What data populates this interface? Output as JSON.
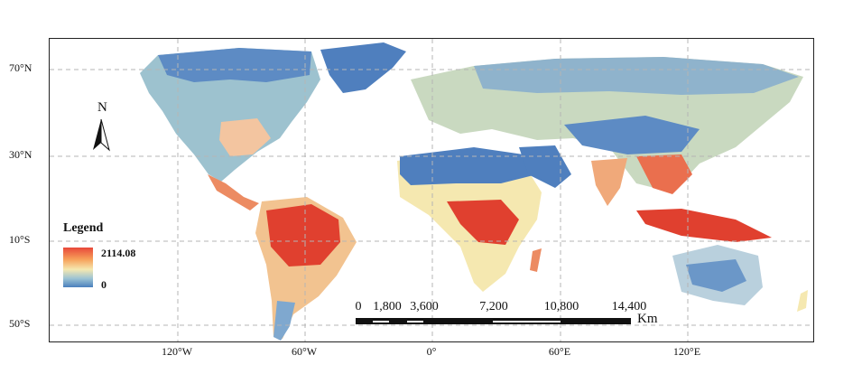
{
  "map": {
    "latitude_labels": [
      "70°N",
      "30°N",
      "10°S",
      "50°S"
    ],
    "longitude_labels": [
      "120°W",
      "60°W",
      "0°",
      "60°E",
      "120°E"
    ],
    "gridlines": "dashed",
    "colors": {
      "frame": "#222222",
      "ocean": "#ffffff",
      "high": "#e0402f",
      "mid": "#f5e8b0",
      "low": "#4a7fbd"
    }
  },
  "legend": {
    "title": "Legend",
    "max_label": "2114.08",
    "min_label": "0",
    "max_value": 2114.08,
    "min_value": 0
  },
  "scale_bar": {
    "labels": [
      "0",
      "1,800",
      "3,600",
      "7,200",
      "10,800",
      "14,400"
    ],
    "unit": "Km"
  },
  "north_arrow": {
    "label": "N",
    "icon": "north-arrow-icon"
  }
}
